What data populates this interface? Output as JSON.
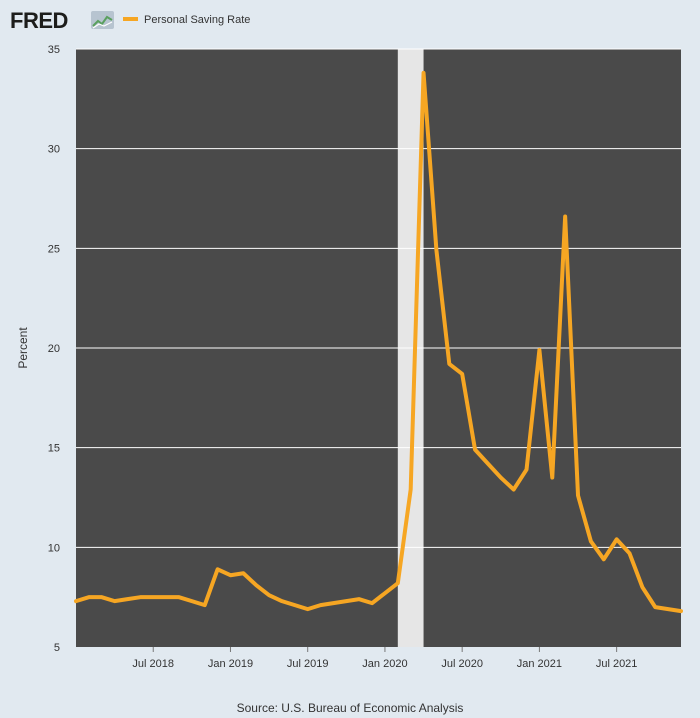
{
  "header": {
    "logo_text": "FRED",
    "legend_label": "Personal Saving Rate"
  },
  "colors": {
    "series": "#f6a623",
    "plot_background": "#4a4a4a",
    "page_background": "#e1e9f0",
    "recession": "#e6e6e6",
    "gridline": "#ffffff"
  },
  "chart_data": {
    "type": "line",
    "title": "",
    "xlabel": "",
    "ylabel": "Percent",
    "source": "Source: U.S. Bureau of Economic Analysis",
    "ylim": [
      5,
      35
    ],
    "yticks": [
      5,
      10,
      15,
      20,
      25,
      30,
      35
    ],
    "xlim": [
      "2018-01",
      "2021-12"
    ],
    "xticks": [
      {
        "date": "2018-07",
        "label": "Jul 2018"
      },
      {
        "date": "2019-01",
        "label": "Jan 2019"
      },
      {
        "date": "2019-07",
        "label": "Jul 2019"
      },
      {
        "date": "2020-01",
        "label": "Jan 2020"
      },
      {
        "date": "2020-07",
        "label": "Jul 2020"
      },
      {
        "date": "2021-01",
        "label": "Jan 2021"
      },
      {
        "date": "2021-07",
        "label": "Jul 2021"
      }
    ],
    "grid": true,
    "legend_position": "top-left",
    "recession": {
      "start": "2020-02",
      "end": "2020-04"
    },
    "series": [
      {
        "name": "Personal Saving Rate",
        "x": [
          "2018-01",
          "2018-02",
          "2018-03",
          "2018-04",
          "2018-05",
          "2018-06",
          "2018-07",
          "2018-08",
          "2018-09",
          "2018-10",
          "2018-11",
          "2018-12",
          "2019-01",
          "2019-02",
          "2019-03",
          "2019-04",
          "2019-05",
          "2019-06",
          "2019-07",
          "2019-08",
          "2019-09",
          "2019-10",
          "2019-11",
          "2019-12",
          "2020-01",
          "2020-02",
          "2020-03",
          "2020-04",
          "2020-05",
          "2020-06",
          "2020-07",
          "2020-08",
          "2020-09",
          "2020-10",
          "2020-11",
          "2020-12",
          "2021-01",
          "2021-02",
          "2021-03",
          "2021-04",
          "2021-05",
          "2021-06",
          "2021-07",
          "2021-08",
          "2021-09",
          "2021-10",
          "2021-11",
          "2021-12"
        ],
        "values": [
          7.3,
          7.5,
          7.5,
          7.3,
          7.4,
          7.5,
          7.5,
          7.5,
          7.5,
          7.3,
          7.1,
          8.9,
          8.6,
          8.7,
          8.1,
          7.6,
          7.3,
          7.1,
          6.9,
          7.1,
          7.2,
          7.3,
          7.4,
          7.2,
          7.7,
          8.2,
          12.9,
          33.8,
          24.9,
          19.2,
          18.7,
          14.9,
          14.2,
          13.5,
          12.9,
          13.9,
          19.9,
          13.5,
          26.6,
          12.6,
          10.3,
          9.4,
          10.4,
          9.7,
          8.0,
          7.0,
          6.9,
          6.8
        ]
      }
    ]
  }
}
